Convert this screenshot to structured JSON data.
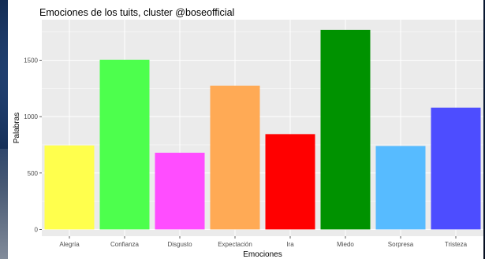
{
  "chart_data": {
    "type": "bar",
    "title": "Emociones de los tuits, cluster @boseofficial",
    "xlabel": "Emociones",
    "ylabel": "Palabras",
    "categories": [
      "Alegría",
      "Confianza",
      "Disgusto",
      "Expectación",
      "Ira",
      "Miedo",
      "Sorpresa",
      "Tristeza"
    ],
    "values": [
      745,
      1505,
      680,
      1275,
      845,
      1770,
      740,
      1080
    ],
    "colors": [
      "#ffff4d",
      "#4dff4d",
      "#ff4dff",
      "#ffaa55",
      "#ff0000",
      "#009200",
      "#57bbff",
      "#4d4dff"
    ],
    "y_ticks": [
      0,
      500,
      1000,
      1500
    ],
    "ylim": [
      -60,
      1860
    ],
    "grid": true,
    "panel_background": "#ebebeb",
    "grid_color": "#ffffff"
  }
}
